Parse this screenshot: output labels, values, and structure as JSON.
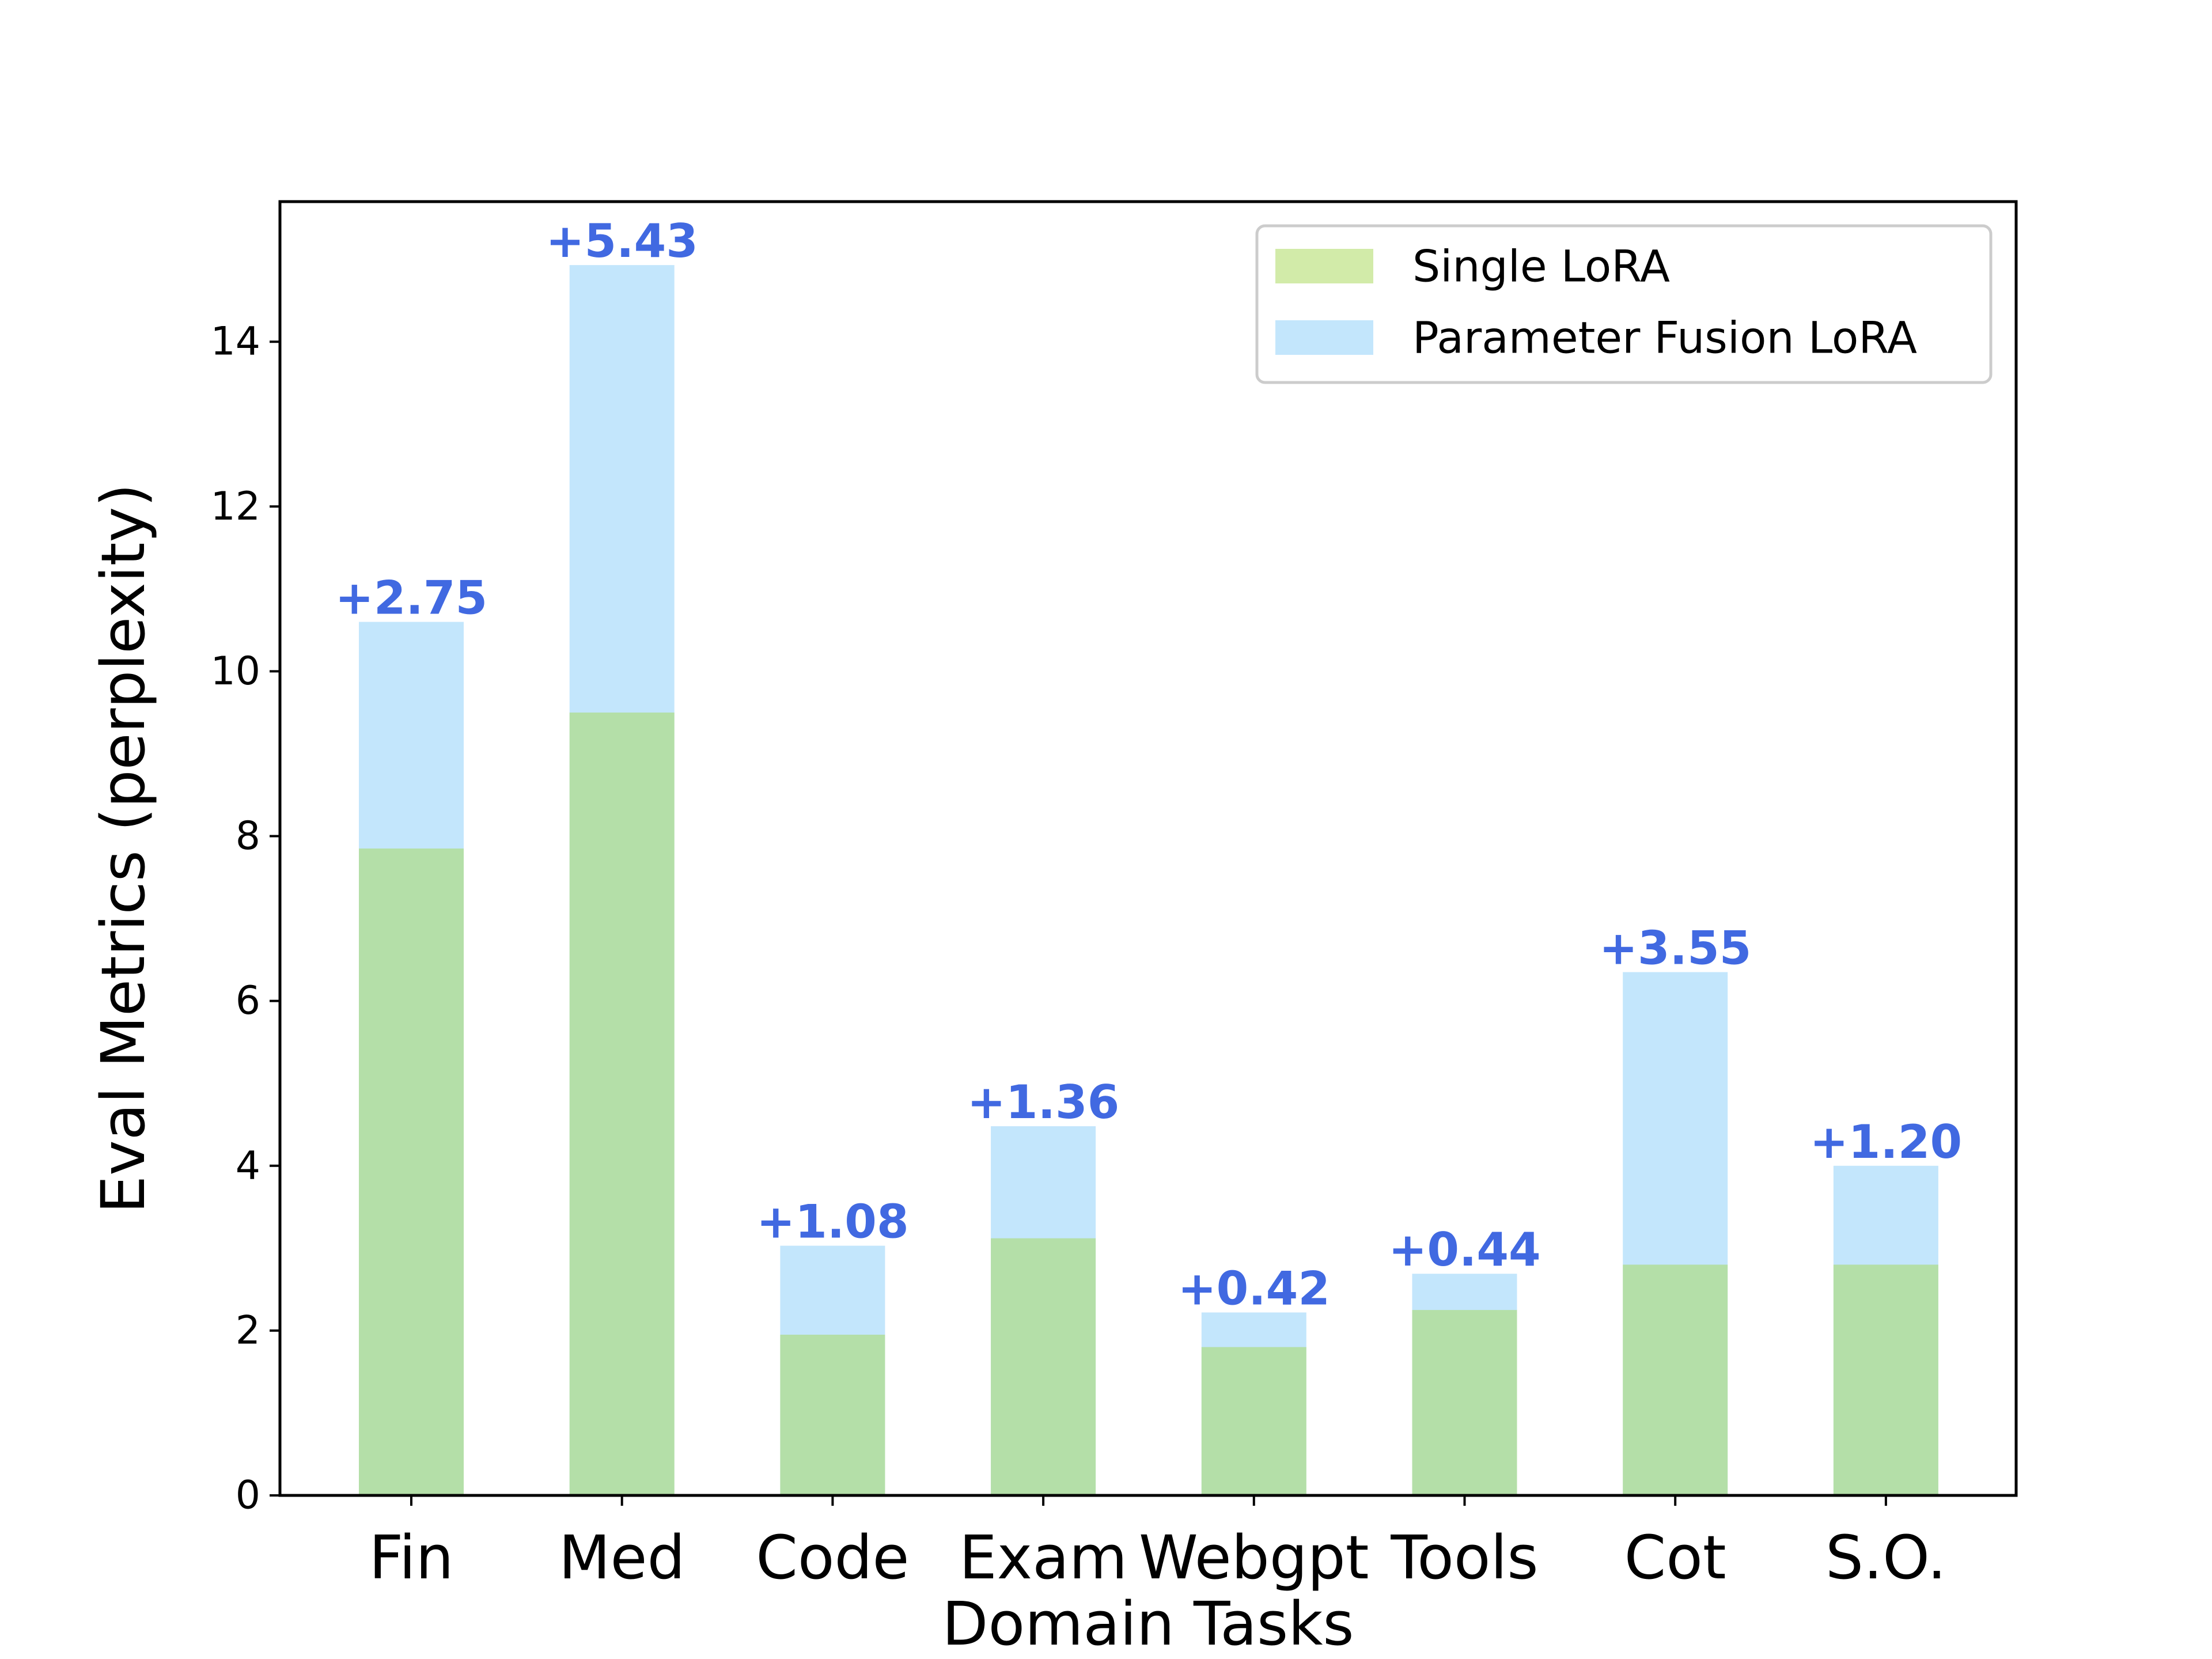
{
  "chart_data": {
    "type": "bar",
    "title": "",
    "xlabel": "Domain Tasks",
    "ylabel": "Eval Metrics (perplexity)",
    "ylim": [
      0,
      15.7
    ],
    "yticks": [
      0,
      2,
      4,
      6,
      8,
      10,
      12,
      14
    ],
    "categories": [
      "Fin",
      "Med",
      "Code",
      "Exam",
      "Webgpt",
      "Tools",
      "Cot",
      "S.O."
    ],
    "series": [
      {
        "name": "Single LoRA",
        "color": "#a6d854",
        "values": [
          7.85,
          9.5,
          1.95,
          3.12,
          1.8,
          2.25,
          2.8,
          2.8
        ]
      },
      {
        "name": "Parameter Fusion LoRA",
        "color": "#87cefa",
        "values": [
          10.6,
          14.93,
          3.03,
          4.48,
          2.22,
          2.69,
          6.35,
          4.0
        ]
      }
    ],
    "annotations": [
      "+2.75",
      "+5.43",
      "+1.08",
      "+1.36",
      "+0.42",
      "+0.44",
      "+3.55",
      "+1.20"
    ],
    "annotation_color": "#4169e1",
    "legend": {
      "placement": "top-right",
      "labels": [
        "Single LoRA",
        "Parameter Fusion LoRA"
      ]
    },
    "grid": false
  }
}
